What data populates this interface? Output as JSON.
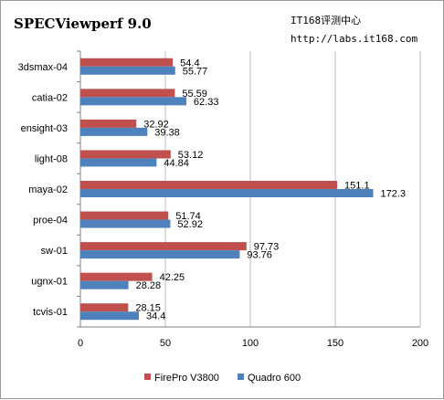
{
  "chart_data": {
    "type": "bar",
    "orientation": "horizontal",
    "title": "SPECViewperf 9.0",
    "watermark_lines": [
      "IT168评测中心",
      "http://labs.it168.com"
    ],
    "categories": [
      "3dsmax-04",
      "catia-02",
      "ensight-03",
      "light-08",
      "maya-02",
      "proe-04",
      "sw-01",
      "ugnx-01",
      "tcvis-01"
    ],
    "series": [
      {
        "name": "FirePro V3800",
        "color": "#c0504d",
        "values": [
          54.4,
          55.59,
          32.92,
          53.12,
          151.1,
          51.74,
          97.73,
          42.25,
          28.15
        ]
      },
      {
        "name": "Quadro 600",
        "color": "#4f81bd",
        "values": [
          55.77,
          62.33,
          39.38,
          44.84,
          172.3,
          52.92,
          93.76,
          28.28,
          34.4
        ]
      }
    ],
    "xlim": [
      0,
      200
    ],
    "xticks": [
      0,
      50,
      100,
      150,
      200
    ],
    "grid": "vertical",
    "legend_position": "bottom"
  }
}
